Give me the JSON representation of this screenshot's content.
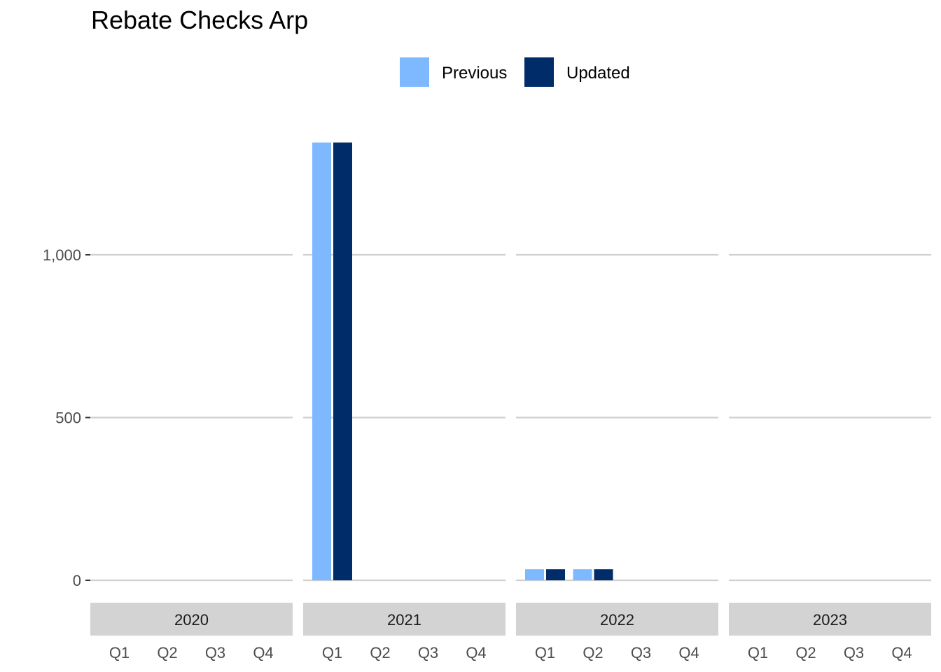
{
  "chart_data": {
    "type": "bar",
    "title": "Rebate Checks Arp",
    "xlabel": "",
    "ylabel": "",
    "ylim": [
      0,
      1350
    ],
    "yticks": [
      0,
      500,
      1000
    ],
    "ytick_labels": [
      "0",
      "500",
      "1,000"
    ],
    "facets": [
      "2020",
      "2021",
      "2022",
      "2023"
    ],
    "categories": [
      "Q1",
      "Q2",
      "Q3",
      "Q4"
    ],
    "series": [
      {
        "name": "Previous",
        "color": "#7EB9FF",
        "values": [
          [
            0,
            0,
            0,
            0
          ],
          [
            1345,
            0,
            0,
            0
          ],
          [
            34,
            34,
            0,
            0
          ],
          [
            0,
            0,
            0,
            0
          ]
        ]
      },
      {
        "name": "Updated",
        "color": "#002D69",
        "values": [
          [
            0,
            0,
            0,
            0
          ],
          [
            1345,
            0,
            0,
            0
          ],
          [
            34,
            34,
            0,
            0
          ],
          [
            0,
            0,
            0,
            0
          ]
        ]
      }
    ],
    "legend_position": "top",
    "grid": "horizontal-major"
  }
}
